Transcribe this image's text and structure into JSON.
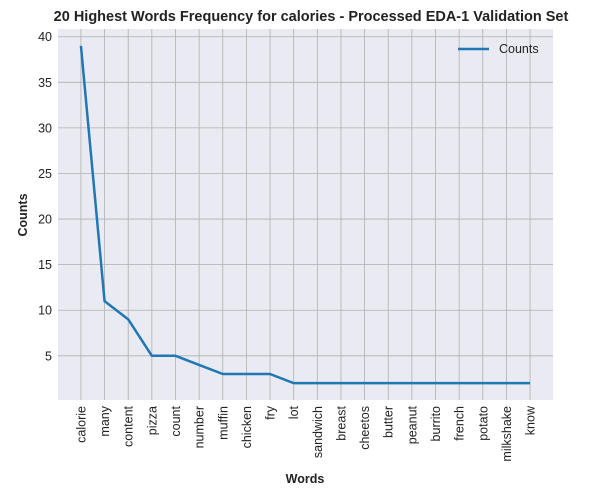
{
  "chart_data": {
    "type": "line",
    "title": "20 Highest Words Frequency for calories - Processed EDA-1 Validation Set",
    "xlabel": "Words",
    "ylabel": "Counts",
    "categories": [
      "calorie",
      "many",
      "content",
      "pizza",
      "count",
      "number",
      "muffin",
      "chicken",
      "fry",
      "lot",
      "sandwich",
      "breast",
      "cheetos",
      "butter",
      "peanut",
      "burrito",
      "french",
      "potato",
      "milkshake",
      "know"
    ],
    "series": [
      {
        "name": "Counts",
        "values": [
          39,
          11,
          9,
          5,
          5,
          4,
          3,
          3,
          3,
          2,
          2,
          2,
          2,
          2,
          2,
          2,
          2,
          2,
          2,
          2
        ]
      }
    ],
    "yticks": [
      5,
      10,
      15,
      20,
      25,
      30,
      35,
      40
    ],
    "ylim": [
      0.15,
      40.85
    ],
    "grid": true,
    "legend": "top-right",
    "colors": {
      "line": "#1f77b4",
      "plot_bg": "#eaeaf2",
      "grid": "#b0b0b0"
    }
  }
}
